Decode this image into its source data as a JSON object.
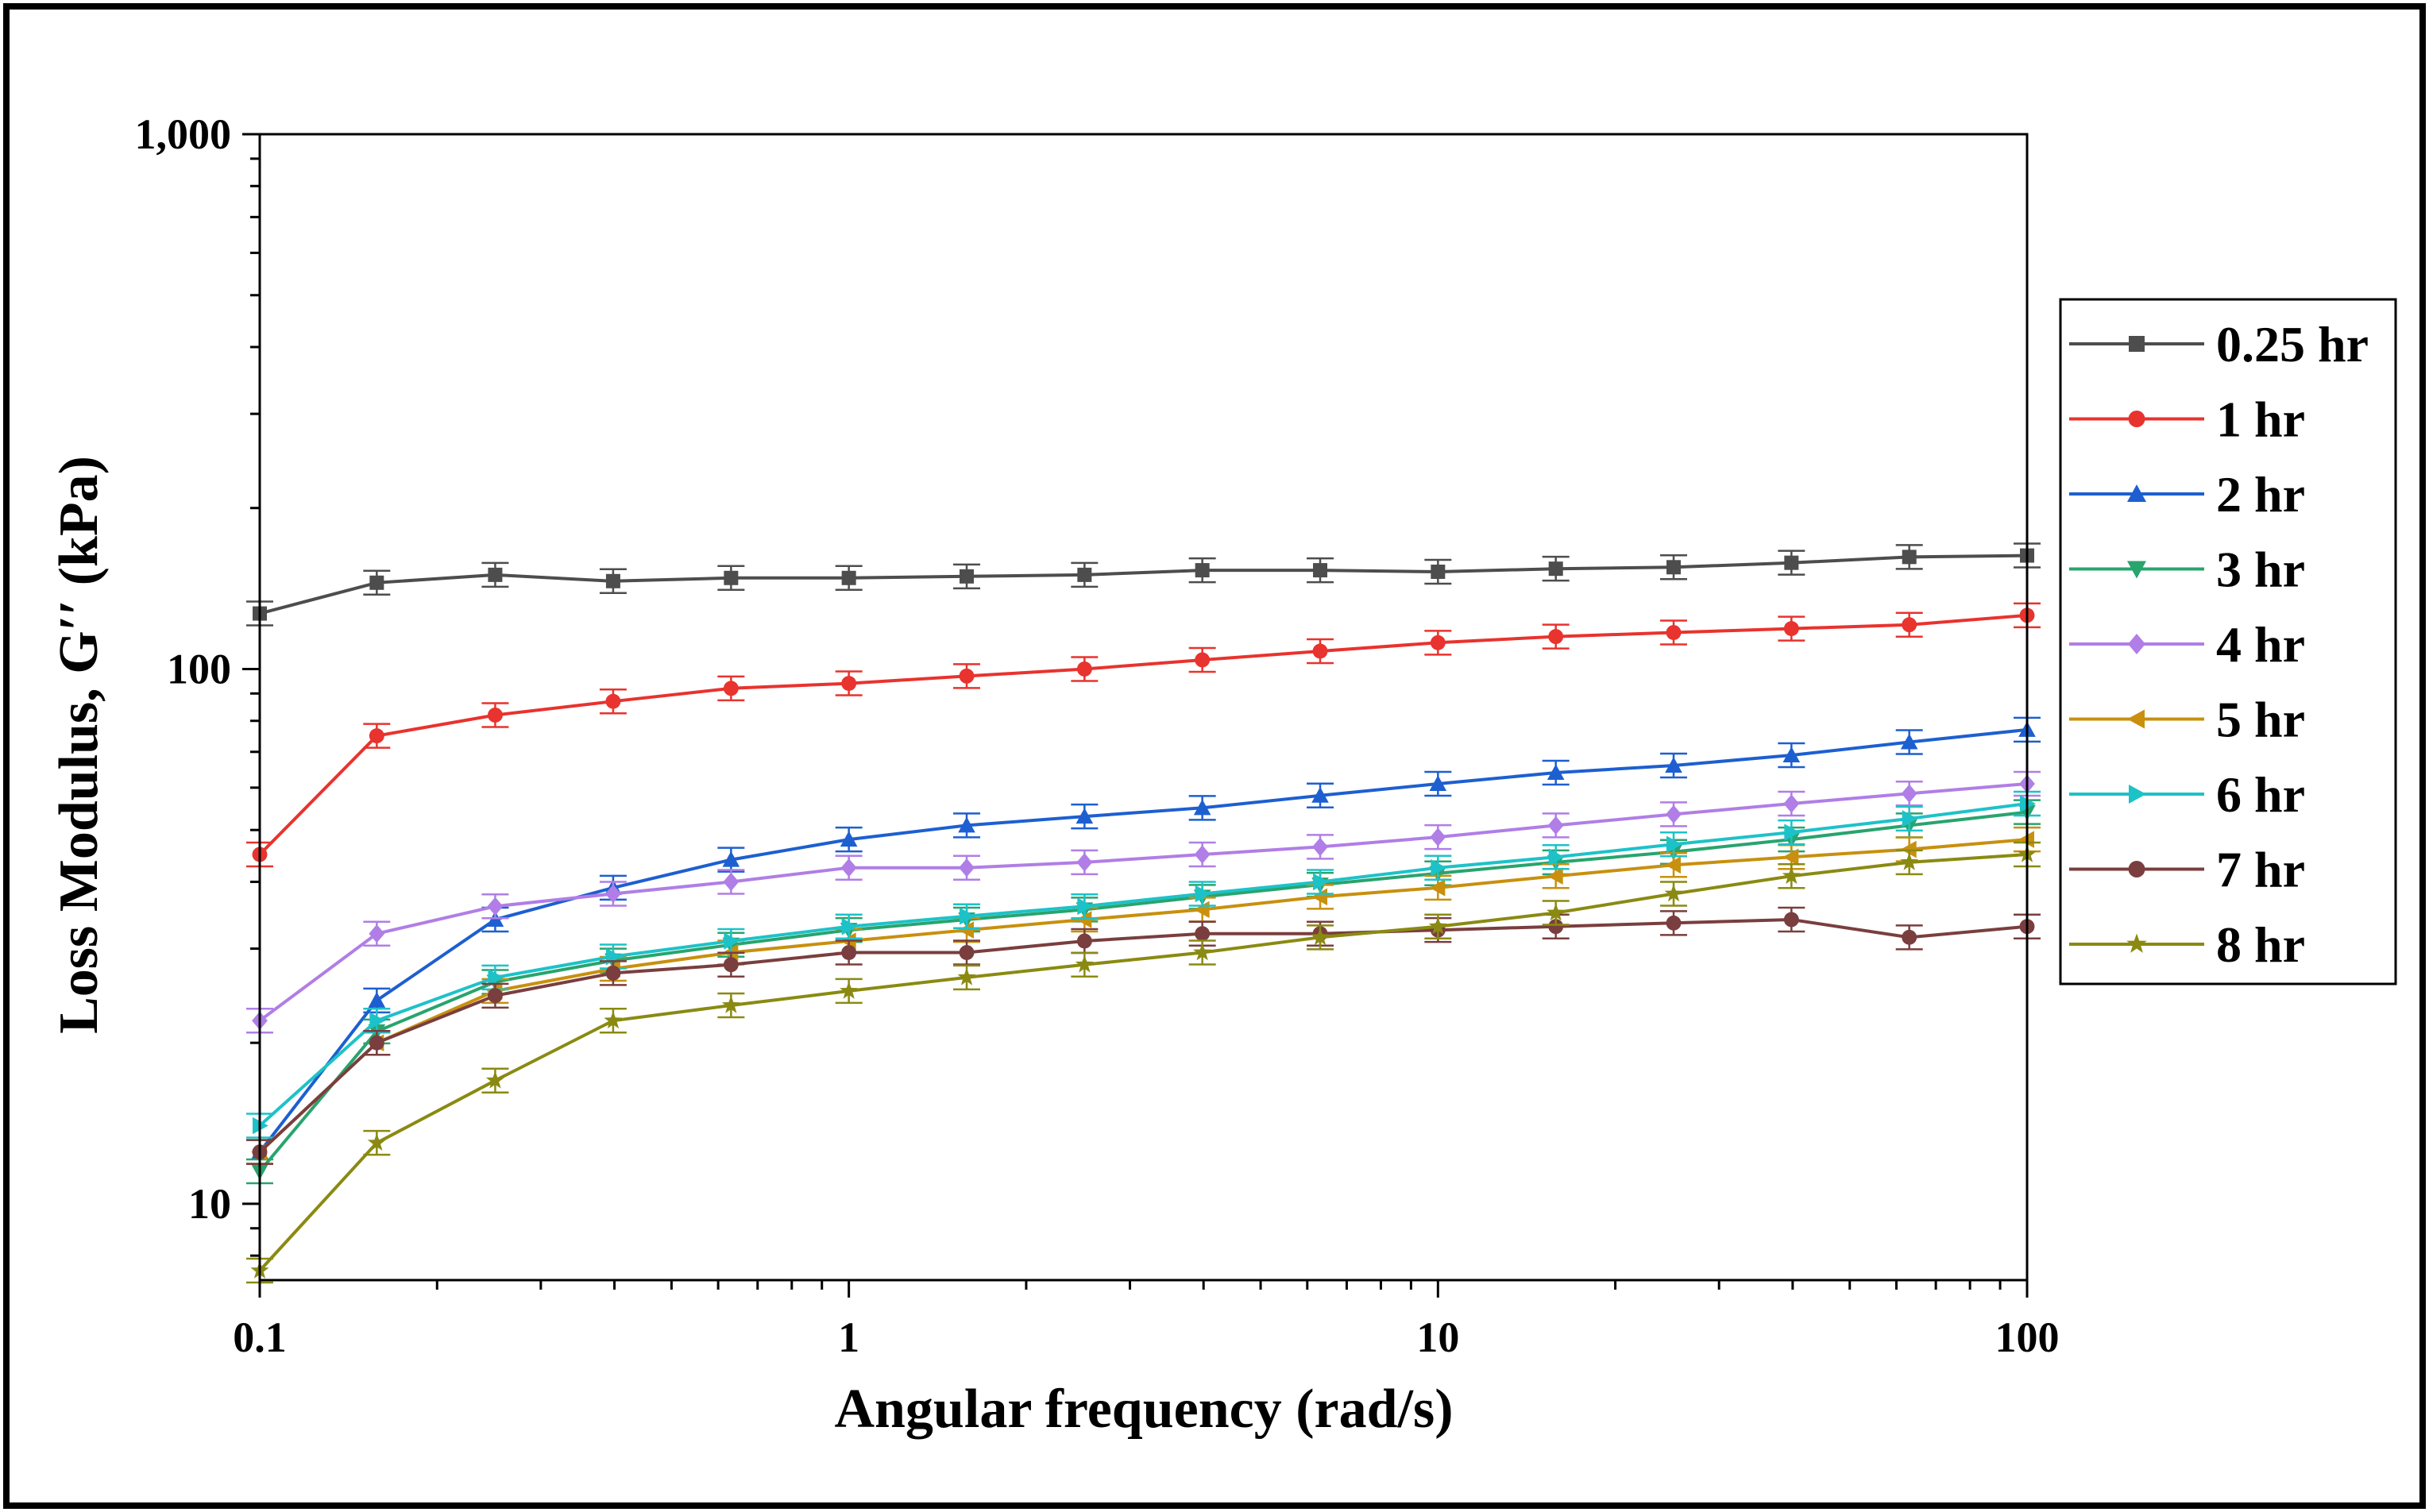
{
  "chart_data": {
    "type": "line",
    "title": "",
    "xlabel": "Angular frequency (rad/s)",
    "ylabel": "Loss Modulus, G′′ (kPa)",
    "xscale": "log",
    "yscale": "log",
    "xlim": [
      0.1,
      100
    ],
    "ylim": [
      7.2,
      1000
    ],
    "xticks": [
      0.1,
      1,
      10,
      100
    ],
    "xtick_labels": [
      "0.1",
      "1",
      "10",
      "100"
    ],
    "yticks": [
      10,
      100,
      1000
    ],
    "ytick_labels": [
      "10",
      "100",
      "1,000"
    ],
    "legend_position": "right",
    "x": [
      0.1,
      0.158,
      0.251,
      0.398,
      0.631,
      1,
      1.585,
      2.512,
      3.981,
      6.31,
      10,
      15.85,
      25.12,
      39.81,
      63.1,
      100
    ],
    "series": [
      {
        "name": "0.25 hr",
        "color": "#4d4d4d",
        "marker": "square",
        "values": [
          127,
          145,
          150,
          146,
          148,
          148,
          149,
          150,
          153,
          153,
          152,
          154,
          155,
          158,
          162,
          163
        ]
      },
      {
        "name": "1 hr",
        "color": "#e8332e",
        "marker": "circle",
        "values": [
          45,
          75,
          82,
          87,
          92,
          94,
          97,
          100,
          104,
          108,
          112,
          115,
          117,
          119,
          121,
          126
        ]
      },
      {
        "name": "2 hr",
        "color": "#1d5fd0",
        "marker": "triangle-up",
        "values": [
          12.5,
          24,
          34,
          39,
          44,
          48,
          51,
          53,
          55,
          58,
          61,
          64,
          66,
          69,
          73,
          77
        ]
      },
      {
        "name": "3 hr",
        "color": "#28a46e",
        "marker": "triangle-down",
        "values": [
          11.5,
          21,
          26,
          28.5,
          30.5,
          32.5,
          34,
          35.5,
          37.5,
          39.5,
          41.5,
          43.5,
          45.5,
          48,
          51,
          54
        ]
      },
      {
        "name": "4 hr",
        "color": "#b07ee6",
        "marker": "diamond",
        "values": [
          22,
          32,
          36,
          38,
          40,
          42.5,
          42.5,
          43.5,
          45,
          46.5,
          48.5,
          51,
          53.5,
          56,
          58.5,
          61
        ]
      },
      {
        "name": "5 hr",
        "color": "#c8900e",
        "marker": "triangle-left",
        "values": [
          12.5,
          20,
          25,
          27.5,
          29.5,
          31,
          32.5,
          34,
          35.5,
          37.5,
          39,
          41,
          43,
          44.5,
          46,
          48
        ]
      },
      {
        "name": "6 hr",
        "color": "#1dc2c8",
        "marker": "triangle-right",
        "values": [
          14,
          22,
          26.5,
          29,
          31,
          33,
          34.5,
          36,
          38,
          40,
          42.5,
          44.5,
          47,
          49.5,
          52.5,
          56
        ]
      },
      {
        "name": "7 hr",
        "color": "#7a3e3e",
        "marker": "hexagon",
        "values": [
          12.5,
          20,
          24.5,
          27,
          28,
          29.5,
          29.5,
          31,
          32,
          32,
          32.5,
          33,
          33.5,
          34,
          31.5,
          33
        ]
      },
      {
        "name": "8 hr",
        "color": "#8a8a12",
        "marker": "star",
        "values": [
          7.5,
          13,
          17,
          22,
          23.5,
          25,
          26.5,
          28,
          29.5,
          31.5,
          33,
          35,
          38,
          41,
          43.5,
          45
        ]
      }
    ]
  }
}
